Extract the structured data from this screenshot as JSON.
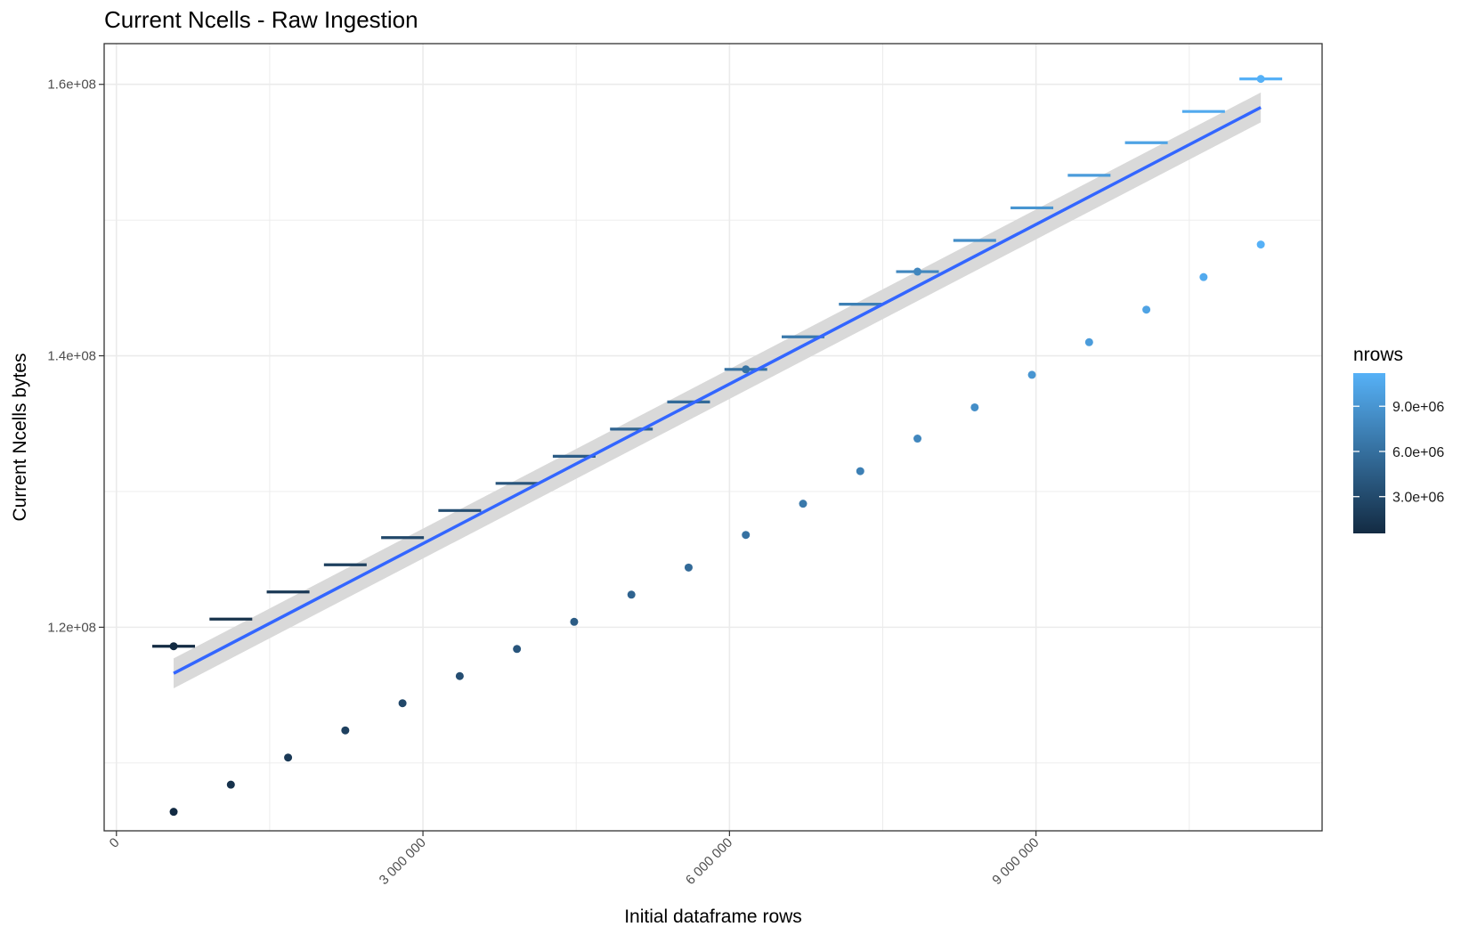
{
  "chart_data": {
    "type": "scatter",
    "title": "Current Ncells - Raw Ingestion",
    "xlabel": "Initial dataframe rows",
    "ylabel": "Current Ncells bytes",
    "xlim": [
      -120000,
      11800000
    ],
    "ylim": [
      105000000,
      163000000
    ],
    "x_ticks": [
      {
        "value": 0,
        "label": "0"
      },
      {
        "value": 3000000,
        "label": "3 000 000"
      },
      {
        "value": 6000000,
        "label": "6 000 000"
      },
      {
        "value": 9000000,
        "label": "9 000 000"
      }
    ],
    "y_ticks": [
      {
        "value": 120000000,
        "label": "1.2e+08"
      },
      {
        "value": 140000000,
        "label": "1.4e+08"
      },
      {
        "value": 160000000,
        "label": "1.6e+08"
      }
    ],
    "grid": true,
    "x": [
      560000,
      1120000,
      1680000,
      2240000,
      2800000,
      3360000,
      3920000,
      4480000,
      5040000,
      5600000,
      6160000,
      6720000,
      7280000,
      7840000,
      8400000,
      8960000,
      9520000,
      10080000,
      10640000,
      11200000
    ],
    "series": [
      {
        "marker": "point",
        "values": [
          106400000,
          108400000,
          110400000,
          112400000,
          114400000,
          116400000,
          118400000,
          120400000,
          122400000,
          124400000,
          126800000,
          129100000,
          131500000,
          133900000,
          136200000,
          138600000,
          141000000,
          143400000,
          145800000,
          148200000
        ]
      },
      {
        "marker": "hline",
        "values": [
          118600000,
          120600000,
          122600000,
          124600000,
          126600000,
          128600000,
          130600000,
          132600000,
          134600000,
          136600000,
          139000000,
          141400000,
          143800000,
          146200000,
          148500000,
          150900000,
          153300000,
          155700000,
          158000000,
          160400000
        ]
      }
    ],
    "fit_line": {
      "method": "linear",
      "x": [
        560000,
        11200000
      ],
      "y": [
        116600000,
        158300000
      ],
      "ci_halfwidth": [
        1100000,
        1100000
      ],
      "line_color": "#3366FF",
      "band_color": "#d9d9d9"
    },
    "legend": {
      "title": "nrows",
      "placement": "right",
      "min": 560000,
      "max": 11200000,
      "ticks": [
        {
          "value": 3000000,
          "label": "3.0e+06"
        },
        {
          "value": 6000000,
          "label": "6.0e+06"
        },
        {
          "value": 9000000,
          "label": "9.0e+06"
        }
      ],
      "color_low": "#132B43",
      "color_high": "#56B1F7"
    }
  }
}
